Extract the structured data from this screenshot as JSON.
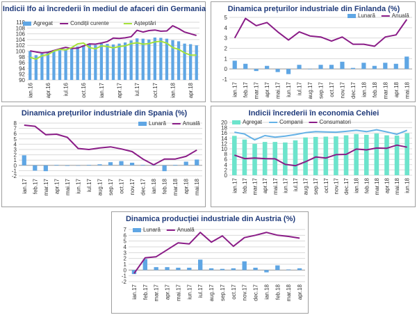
{
  "colors": {
    "bar": "#5fa6e4",
    "teal": "#6de4cc",
    "purple": "#8a1c87",
    "lightblue": "#64b1e6",
    "green": "#a6e23a",
    "title": "#1f3a7a"
  },
  "chart_data": [
    {
      "id": "germany",
      "type": "bar+line",
      "title": "Indicii Ifo ai încrederii în mediul de afaceri din Germania",
      "categories": [
        "ian.16",
        "",
        "",
        "apr.16",
        "",
        "",
        "iul.16",
        "",
        "",
        "oct.16",
        "",
        "",
        "ian.17",
        "",
        "",
        "apr.17",
        "",
        "",
        "iul.17",
        "",
        "",
        "oct.17",
        "",
        "",
        "ian.18",
        "",
        "",
        "apr.18",
        ""
      ],
      "ylim": [
        90,
        110
      ],
      "yticks": [
        90,
        92,
        94,
        96,
        98,
        100,
        102,
        104,
        106,
        108,
        110
      ],
      "bars": {
        "name": "Agregat",
        "values": [
          100.0,
          98.6,
          99.2,
          99.8,
          100.4,
          100.3,
          100.7,
          101.0,
          101.6,
          102.0,
          102.4,
          102.1,
          102.6,
          102.5,
          102.3,
          102.6,
          103.0,
          103.7,
          104.4,
          104.3,
          104.0,
          104.7,
          104.6,
          104.3,
          103.8,
          103.4,
          102.6,
          102.4,
          102.0
        ]
      },
      "series": [
        {
          "name": "Condiții curente",
          "color": "#8a1c87",
          "values": [
            100.1,
            99.7,
            99.4,
            99.6,
            100.2,
            100.8,
            101.3,
            100.9,
            101.0,
            101.8,
            102.5,
            102.4,
            102.8,
            103.3,
            104.5,
            104.4,
            104.6,
            105.0,
            107.2,
            106.6,
            107.1,
            107.3,
            106.9,
            107.0,
            108.8,
            107.8,
            106.6,
            106.0,
            105.4
          ]
        },
        {
          "name": "Așteptări",
          "color": "#a6e23a",
          "values": [
            97.8,
            97.2,
            98.4,
            98.8,
            100.0,
            100.6,
            100.4,
            101.2,
            102.5,
            102.8,
            101.2,
            100.8,
            101.8,
            101.6,
            101.1,
            101.6,
            101.8,
            102.6,
            102.9,
            102.4,
            102.6,
            103.2,
            103.4,
            102.8,
            101.2,
            100.6,
            99.4,
            98.6,
            98.6
          ]
        }
      ]
    },
    {
      "id": "finlanda",
      "type": "bar+line",
      "title": "Dinamica prețurilor industriale din Finlanda (%)",
      "categories": [
        "ian.17",
        "feb.17",
        "mar.17",
        "apr.17",
        "mai.17",
        "iun.17",
        "iul.17",
        "aug.17",
        "sep.17",
        "oct.17",
        "nov.17",
        "dec.17",
        "ian.18",
        "feb.18",
        "mar.18",
        "apr.18",
        "mai.18"
      ],
      "ylim": [
        -1,
        5
      ],
      "yticks": [
        -1,
        0,
        1,
        2,
        3,
        4,
        5
      ],
      "bars": {
        "name": "Lunară",
        "values": [
          0.8,
          0.5,
          -0.2,
          0.3,
          -0.3,
          -0.5,
          0.4,
          0.0,
          0.4,
          0.4,
          0.7,
          0.1,
          0.6,
          0.3,
          0.6,
          0.5,
          1.2
        ]
      },
      "series": [
        {
          "name": "Anuală",
          "color": "#8a1c87",
          "values": [
            3.0,
            4.9,
            4.2,
            4.5,
            3.6,
            2.8,
            3.6,
            3.2,
            3.1,
            2.7,
            3.1,
            2.4,
            2.4,
            2.2,
            3.1,
            3.3,
            4.8
          ]
        }
      ]
    },
    {
      "id": "spania",
      "type": "bar+line",
      "title": "Dinamica prețurilor industriale din Spania  (%)",
      "categories": [
        "ian.17",
        "feb.17",
        "mar.17",
        "apr.17",
        "mai.17",
        "iun.17",
        "iul.17",
        "aug.17",
        "sep.17",
        "oct.17",
        "nov.17",
        "dec.17",
        "ian.18",
        "feb.18",
        "mar.18",
        "apr.18",
        "mai.18"
      ],
      "ylim": [
        -2,
        8
      ],
      "yticks": [
        -2,
        -1,
        0,
        1,
        2,
        3,
        4,
        5,
        6,
        7,
        8
      ],
      "bars": {
        "name": "Lunară",
        "values": [
          1.9,
          -1.0,
          -1.1,
          0.1,
          -0.1,
          0.0,
          0.1,
          0.2,
          0.6,
          0.8,
          0.5,
          0.1,
          0.1,
          -1.1,
          0.1,
          0.7,
          1.1
        ]
      },
      "series": [
        {
          "name": "Anuală",
          "color": "#8a1c87",
          "values": [
            7.6,
            7.4,
            5.8,
            5.9,
            5.3,
            3.2,
            3.0,
            3.3,
            3.5,
            3.1,
            2.6,
            1.2,
            0.1,
            1.2,
            1.2,
            1.7,
            2.9
          ]
        }
      ]
    },
    {
      "id": "cehia",
      "type": "bar+line",
      "title": "Indicii încrederii în economia Cehiei",
      "categories": [
        "ian.17",
        "feb.17",
        "mar.17",
        "apr.17",
        "mai.17",
        "iun.17",
        "iul.17",
        "aug.17",
        "sep.17",
        "oct.17",
        "nov.17",
        "dec.17",
        "ian.18",
        "feb.18",
        "mar.18",
        "apr.18",
        "mai.18",
        "iun.18"
      ],
      "ylim": [
        0,
        20
      ],
      "yticks": [
        0,
        2,
        4,
        6,
        8,
        10,
        12,
        14,
        16,
        18,
        20
      ],
      "bars": {
        "name": "Agregat",
        "values": [
          14.9,
          13.5,
          11.9,
          12.6,
          12.6,
          12.4,
          13.2,
          14.3,
          14.5,
          14.6,
          14.7,
          15.1,
          15.6,
          15.3,
          15.8,
          15.1,
          15.0,
          15.9
        ]
      },
      "series": [
        {
          "name": "Companii",
          "color": "#64b1e6",
          "values": [
            16.3,
            15.6,
            13.4,
            15.0,
            14.4,
            14.8,
            15.4,
            16.1,
            16.5,
            16.4,
            16.3,
            16.6,
            17.0,
            16.5,
            17.2,
            16.4,
            15.5,
            17.0
          ]
        },
        {
          "name": "Consumatori",
          "color": "#8a1c87",
          "values": [
            7.6,
            6.3,
            6.5,
            6.3,
            6.2,
            4.1,
            3.6,
            5.1,
            6.9,
            6.5,
            7.8,
            7.9,
            9.9,
            9.6,
            10.3,
            10.2,
            11.4,
            10.6
          ]
        }
      ]
    },
    {
      "id": "austria",
      "type": "bar+line",
      "title": "Dinamica producției industriale din Austria (%)",
      "categories": [
        "ian.17",
        "feb.17",
        "mar.17",
        "apr.17",
        "mai.17",
        "iun.17",
        "iul.17",
        "aug.17",
        "sep.17",
        "oct.17",
        "nov.17",
        "dec.17",
        "ian.18",
        "feb.18",
        "mar.18",
        "apr.18"
      ],
      "ylim": [
        -2,
        7
      ],
      "yticks": [
        -2,
        -1,
        0,
        1,
        2,
        3,
        4,
        5,
        6,
        7
      ],
      "bars": {
        "name": "Lunară",
        "values": [
          -0.7,
          1.9,
          0.5,
          0.5,
          0.4,
          0.4,
          1.8,
          0.3,
          0.2,
          0.3,
          1.5,
          0.4,
          -0.4,
          0.8,
          0.1,
          0.3
        ]
      },
      "series": [
        {
          "name": "Anuală",
          "color": "#8a1c87",
          "values": [
            -0.6,
            2.1,
            2.3,
            3.5,
            4.7,
            4.5,
            6.5,
            4.8,
            5.9,
            4.1,
            5.6,
            6.0,
            6.5,
            6.0,
            5.8,
            5.5
          ]
        }
      ]
    }
  ]
}
